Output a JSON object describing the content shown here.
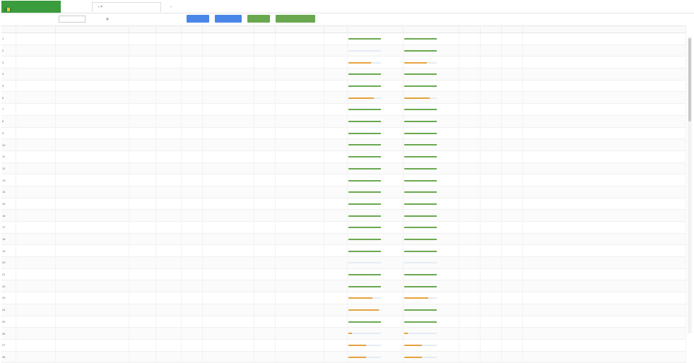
{
  "topbar": {
    "brand_line1": "",
    "brand_line2": "",
    "brand_badge": "",
    "tabs": [
      "",
      ""
    ],
    "clock_line1": "",
    "clock_line2": ""
  },
  "toolbar": {
    "filter_label": "",
    "select_value": "",
    "date_label": "",
    "date_from": "",
    "date_to": "",
    "buttons": [
      "",
      "",
      "",
      ""
    ]
  },
  "table": {
    "columns": [
      "",
      "",
      "",
      "",
      "",
      "",
      "",
      "",
      "",
      "",
      "",
      "",
      "",
      "",
      "",
      "",
      ""
    ],
    "rows": [
      {
        "no": "1",
        "id": "",
        "name": "",
        "status": "",
        "flag": "",
        "type": "",
        "time1": "",
        "unit": "",
        "time2": "",
        "amount": "",
        "p1": 100,
        "l1": "",
        "p2": 100,
        "l2": "",
        "res": "",
        "mark": "",
        "note": ""
      },
      {
        "no": "2",
        "id": "",
        "name": "",
        "status": "",
        "flag": "",
        "type": "",
        "time1": "",
        "unit": "",
        "time2": "",
        "amount": "",
        "p1": 0,
        "l1": "",
        "p2": 100,
        "l2": "",
        "res": "",
        "mark": "",
        "note": ""
      },
      {
        "no": "3",
        "id": "",
        "name": "",
        "status": "",
        "flag": "",
        "type": "",
        "time1": "",
        "unit": "",
        "time2": "",
        "amount": "",
        "p1": 0.7,
        "l1": "",
        "p2": 0.7,
        "l2": "",
        "res": "",
        "mark": "",
        "note": ""
      },
      {
        "no": "4",
        "id": "",
        "name": "",
        "status": "",
        "flag": "",
        "type": "",
        "time1": "",
        "unit": "",
        "time2": "",
        "amount": "",
        "p1": 100,
        "l1": "",
        "p2": 100,
        "l2": "",
        "res": "",
        "mark": "",
        "note": ""
      },
      {
        "no": "5",
        "id": "",
        "name": "",
        "status": "",
        "flag": "",
        "type": "",
        "time1": "",
        "unit": "",
        "time2": "",
        "amount": "",
        "p1": 100,
        "l1": "",
        "p2": 100,
        "l2": "",
        "res": "",
        "mark": "",
        "note": ""
      },
      {
        "no": "6",
        "id": "",
        "name": "",
        "status": "",
        "flag": "",
        "type": "",
        "time1": "",
        "unit": "",
        "time2": "",
        "amount": "",
        "p1": 0.8,
        "l1": "",
        "p2": 0.8,
        "l2": "",
        "res": "",
        "mark": "",
        "note": ""
      },
      {
        "no": "7",
        "id": "",
        "name": "",
        "status": "",
        "flag": "",
        "type": "",
        "time1": "",
        "unit": "",
        "time2": "",
        "amount": "",
        "p1": 100,
        "l1": "",
        "p2": 100,
        "l2": "",
        "res": "",
        "mark": "",
        "note": ""
      },
      {
        "no": "8",
        "id": "",
        "name": "",
        "status": "",
        "flag": "",
        "type": "",
        "time1": "",
        "unit": "",
        "time2": "",
        "amount": "",
        "p1": 100,
        "l1": "",
        "p2": 100,
        "l2": "",
        "res": "",
        "mark": "",
        "note": ""
      },
      {
        "no": "9",
        "id": "",
        "name": "",
        "status": "",
        "flag": "",
        "type": "",
        "time1": "",
        "unit": "",
        "time2": "",
        "amount": "",
        "p1": 100,
        "l1": "",
        "p2": 100,
        "l2": "",
        "res": "",
        "mark": "",
        "note": ""
      },
      {
        "no": "10",
        "id": "",
        "name": "",
        "status": "",
        "flag": "",
        "type": "",
        "time1": "",
        "unit": "",
        "time2": "",
        "amount": "",
        "p1": 100,
        "l1": "",
        "p2": 100,
        "l2": "",
        "res": "",
        "mark": "",
        "note": ""
      },
      {
        "no": "11",
        "id": "",
        "name": "",
        "status": "",
        "flag": "",
        "type": "",
        "time1": "",
        "unit": "",
        "time2": "",
        "amount": "",
        "p1": 100,
        "l1": "",
        "p2": 100,
        "l2": "",
        "res": "",
        "mark": "",
        "note": ""
      },
      {
        "no": "12",
        "id": "",
        "name": "",
        "status": "",
        "flag": "",
        "type": "",
        "time1": "",
        "unit": "",
        "time2": "",
        "amount": "",
        "p1": 100,
        "l1": "",
        "p2": 100,
        "l2": "",
        "res": "",
        "mark": "",
        "note": ""
      },
      {
        "no": "13",
        "id": "",
        "name": "",
        "status": "",
        "flag": "",
        "type": "",
        "time1": "",
        "unit": "",
        "time2": "",
        "amount": "",
        "p1": 100,
        "l1": "",
        "p2": 100,
        "l2": "",
        "res": "",
        "mark": "",
        "note": ""
      },
      {
        "no": "14",
        "id": "",
        "name": "",
        "status": "",
        "flag": "",
        "type": "",
        "time1": "",
        "unit": "",
        "time2": "",
        "amount": "",
        "p1": 100,
        "l1": "",
        "p2": 100,
        "l2": "",
        "res": "",
        "mark": "",
        "note": ""
      },
      {
        "no": "15",
        "id": "",
        "name": "",
        "status": "",
        "flag": "",
        "type": "",
        "time1": "",
        "unit": "",
        "time2": "",
        "amount": "",
        "p1": 100,
        "l1": "",
        "p2": 100,
        "l2": "",
        "res": "",
        "mark": "",
        "note": ""
      },
      {
        "no": "16",
        "id": "",
        "name": "",
        "status": "",
        "flag": "",
        "type": "",
        "time1": "",
        "unit": "",
        "time2": "",
        "amount": "",
        "p1": 100,
        "l1": "",
        "p2": 100,
        "l2": "",
        "res": "",
        "mark": "",
        "note": ""
      },
      {
        "no": "17",
        "id": "",
        "name": "",
        "status": "",
        "flag": "",
        "type": "",
        "time1": "",
        "unit": "",
        "time2": "",
        "amount": "",
        "p1": 100,
        "l1": "",
        "p2": 100,
        "l2": "",
        "res": "",
        "mark": "",
        "note": ""
      },
      {
        "no": "18",
        "id": "",
        "name": "",
        "status": "",
        "flag": "",
        "type": "",
        "time1": "",
        "unit": "",
        "time2": "",
        "amount": "",
        "p1": 100,
        "l1": "",
        "p2": 100,
        "l2": "",
        "res": "",
        "mark": "",
        "note": ""
      },
      {
        "no": "19",
        "id": "",
        "name": "",
        "status": "",
        "flag": "",
        "type": "",
        "time1": "",
        "unit": "",
        "time2": "",
        "amount": "",
        "p1": 100,
        "l1": "",
        "p2": 100,
        "l2": "",
        "res": "",
        "mark": "",
        "note": ""
      },
      {
        "no": "20",
        "id": "",
        "name": "",
        "status": "",
        "flag": "",
        "type": "",
        "time1": "",
        "unit": "",
        "time2": "",
        "amount": "",
        "p1": 0,
        "l1": "",
        "p2": 0,
        "l2": "",
        "res": "",
        "mark": "",
        "note": ""
      },
      {
        "no": "21",
        "id": "",
        "name": "",
        "status": "",
        "flag": "",
        "type": "",
        "time1": "",
        "unit": "",
        "time2": "",
        "amount": "",
        "p1": 100,
        "l1": "",
        "p2": 100,
        "l2": "",
        "res": "",
        "mark": "",
        "note": ""
      },
      {
        "no": "22",
        "id": "",
        "name": "",
        "status": "",
        "flag": "",
        "type": "",
        "time1": "",
        "unit": "",
        "time2": "",
        "amount": "",
        "p1": 100,
        "l1": "",
        "p2": 100,
        "l2": "",
        "res": "",
        "mark": "",
        "note": ""
      },
      {
        "no": "23",
        "id": "",
        "name": "",
        "status": "",
        "flag": "",
        "type": "",
        "time1": "",
        "unit": "",
        "time2": "",
        "amount": "",
        "p1": 0.75,
        "l1": "",
        "p2": 0.75,
        "l2": "",
        "res": "",
        "mark": "",
        "note": ""
      },
      {
        "no": "24",
        "id": "",
        "name": "",
        "status": "",
        "flag": "",
        "type": "",
        "time1": "",
        "unit": "",
        "time2": "",
        "amount": "",
        "p1": 0.95,
        "l1": "",
        "p2": 100,
        "l2": "",
        "res": "",
        "mark": "",
        "note": ""
      },
      {
        "no": "25",
        "id": "",
        "name": "",
        "status": "",
        "flag": "",
        "type": "",
        "time1": "",
        "unit": "",
        "time2": "",
        "amount": "",
        "p1": 100,
        "l1": "",
        "p2": 100,
        "l2": "",
        "res": "",
        "mark": "",
        "note": ""
      },
      {
        "no": "26",
        "id": "",
        "name": "",
        "status": "",
        "flag": "",
        "type": "",
        "time1": "",
        "unit": "",
        "time2": "",
        "amount": "",
        "p1": 0.12,
        "l1": "",
        "p2": 0.12,
        "l2": "",
        "res": "",
        "mark": "",
        "note": ""
      },
      {
        "no": "27",
        "id": "",
        "name": "",
        "status": "",
        "flag": "",
        "type": "",
        "time1": "",
        "unit": "",
        "time2": "",
        "amount": "",
        "p1": 0.55,
        "l1": "",
        "p2": 0.55,
        "l2": "",
        "res": "",
        "mark": "",
        "note": ""
      },
      {
        "no": "28",
        "id": "",
        "name": "",
        "status": "",
        "flag": "",
        "type": "",
        "time1": "",
        "unit": "",
        "time2": "",
        "amount": "",
        "p1": 0.55,
        "l1": "",
        "p2": 0.55,
        "l2": "",
        "res": "",
        "mark": "",
        "note": ""
      }
    ]
  },
  "colors": {
    "brand": "#3a9c3c",
    "button_blue": "#4a86e8",
    "button_green": "#6aa84f",
    "progress_complete": "#6aa84f",
    "progress_partial": "#e6a23c",
    "status_ok": "#5aa55a",
    "status_alert": "#e06060"
  },
  "icons": {
    "tab_back": "chevron-left-icon",
    "tab_close": "close-icon",
    "tab_menu": "chevron-down-icon",
    "date": "calendar-icon"
  }
}
